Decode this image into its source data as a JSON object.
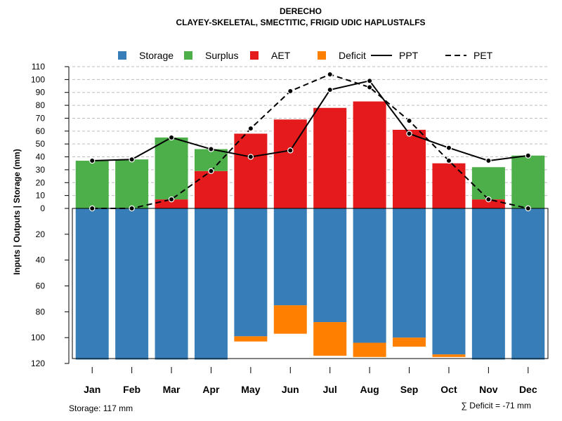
{
  "chart_data": {
    "type": "bar",
    "title": "DERECHO",
    "subtitle": "CLAYEY-SKELETAL, SMECTITIC, FRIGID UDIC HAPLUSTALFS",
    "ylabel": "Inputs | Outputs | Storage    (mm)",
    "categories": [
      "Jan",
      "Feb",
      "Mar",
      "Apr",
      "May",
      "Jun",
      "Jul",
      "Aug",
      "Sep",
      "Oct",
      "Nov",
      "Dec"
    ],
    "ylim_upper": [
      0,
      110
    ],
    "ylim_lower": [
      0,
      120
    ],
    "upper_ticks": [
      "0",
      "10",
      "20",
      "30",
      "40",
      "50",
      "60",
      "70",
      "80",
      "90",
      "100",
      "110"
    ],
    "lower_ticks": [
      "20",
      "40",
      "60",
      "80",
      "100",
      "120"
    ],
    "legend": [
      {
        "name": "Storage",
        "symbol": "box",
        "color": "#377EB8"
      },
      {
        "name": "Surplus",
        "symbol": "box",
        "color": "#4DAF4A"
      },
      {
        "name": "AET",
        "symbol": "box",
        "color": "#E41A1C"
      },
      {
        "name": "Deficit",
        "symbol": "box",
        "color": "#FF7F00"
      },
      {
        "name": "PPT",
        "symbol": "solid-line",
        "color": "#000000"
      },
      {
        "name": "PET",
        "symbol": "dashed-line",
        "color": "#000000"
      }
    ],
    "series": [
      {
        "name": "AET",
        "values": [
          0,
          0,
          7,
          29,
          58,
          69,
          78,
          83,
          61,
          35,
          7,
          0
        ]
      },
      {
        "name": "Surplus",
        "values": [
          37,
          38,
          48,
          17,
          0,
          0,
          0,
          0,
          0,
          0,
          25,
          41
        ]
      },
      {
        "name": "Storage",
        "values": [
          117,
          117,
          117,
          117,
          99,
          75,
          88,
          104,
          100,
          113,
          117,
          117
        ]
      },
      {
        "name": "Deficit",
        "values": [
          0,
          0,
          0,
          0,
          4,
          22,
          26,
          11,
          7,
          2,
          0,
          0
        ]
      },
      {
        "name": "PPT",
        "values": [
          37,
          38,
          55,
          46,
          40,
          45,
          92,
          99,
          58,
          47,
          37,
          41
        ]
      },
      {
        "name": "PET",
        "values": [
          0,
          0,
          7,
          29,
          62,
          91,
          104,
          94,
          68,
          37,
          7,
          0
        ]
      }
    ],
    "footer_left": "Storage: 117 mm",
    "footer_right": "∑ Deficit = -71 mm"
  }
}
